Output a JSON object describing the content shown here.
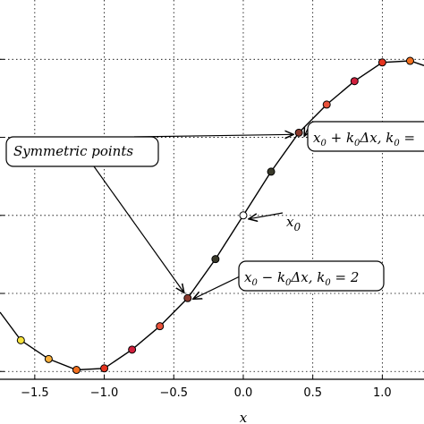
{
  "chart_data": {
    "type": "line",
    "xlabel": "x",
    "xlim": [
      -1.75,
      1.3
    ],
    "ylim": [
      -1.05,
      1.38
    ],
    "x_ticks": [
      -1.5,
      -1.0,
      -0.5,
      0.0,
      0.5,
      1.0
    ],
    "x_tick_labels": [
      "−1.5",
      "−1.0",
      "−0.5",
      "0.0",
      "0.5",
      "1.0"
    ],
    "y_gridlines": [
      -1.0,
      -0.5,
      0.0,
      0.5,
      1.0
    ],
    "grid": true,
    "grid_style": "dotted",
    "curve": {
      "x": [
        -1.75,
        -1.6,
        -1.4,
        -1.2,
        -1.0,
        -0.8,
        -0.6,
        -0.4,
        -0.2,
        0.0,
        0.2,
        0.4,
        0.6,
        0.8,
        1.0,
        1.2,
        1.3
      ],
      "y": [
        -0.62,
        -0.8,
        -0.92,
        -0.99,
        -0.98,
        -0.86,
        -0.71,
        -0.53,
        -0.28,
        0.0,
        0.28,
        0.53,
        0.71,
        0.86,
        0.98,
        0.99,
        0.96
      ]
    },
    "points": [
      {
        "x": -1.6,
        "y": -0.8,
        "color": "#f7e33c"
      },
      {
        "x": -1.4,
        "y": -0.92,
        "color": "#fbb13c"
      },
      {
        "x": -1.2,
        "y": -0.99,
        "color": "#f2701f"
      },
      {
        "x": -1.0,
        "y": -0.98,
        "color": "#e6341f"
      },
      {
        "x": -0.8,
        "y": -0.86,
        "color": "#d11f3c"
      },
      {
        "x": -0.6,
        "y": -0.71,
        "color": "#e8513a"
      },
      {
        "x": -0.4,
        "y": -0.53,
        "color": "#8a3a2e"
      },
      {
        "x": -0.2,
        "y": -0.28,
        "color": "#3a3a2a"
      },
      {
        "x": 0.0,
        "y": 0.0,
        "color": "#ffffff"
      },
      {
        "x": 0.2,
        "y": 0.28,
        "color": "#3a3a2a"
      },
      {
        "x": 0.4,
        "y": 0.53,
        "color": "#8a3a2e"
      },
      {
        "x": 0.6,
        "y": 0.71,
        "color": "#e8513a"
      },
      {
        "x": 0.8,
        "y": 0.86,
        "color": "#d11f3c"
      },
      {
        "x": 1.0,
        "y": 0.98,
        "color": "#e6341f"
      },
      {
        "x": 1.2,
        "y": 0.99,
        "color": "#f2701f"
      }
    ],
    "annotations": {
      "symmetric": {
        "text": "Symmetric points",
        "target_points": [
          {
            "x": 0.4,
            "y": 0.53
          },
          {
            "x": -0.4,
            "y": -0.53
          }
        ]
      },
      "x0": {
        "base": "x",
        "sub": "0",
        "target": {
          "x": 0.0,
          "y": 0.0
        }
      },
      "plus": {
        "text_main": "x",
        "sub0": "0",
        "rest": " + k",
        "sub1": "0",
        "tail": "Δx, k",
        "sub2": "0",
        "eq": " =",
        "target": {
          "x": 0.4,
          "y": 0.53
        }
      },
      "minus": {
        "text_main": "x",
        "sub0": "0",
        "rest": " − k",
        "sub1": "0",
        "tail": "Δx, k",
        "sub2": "0",
        "eq": " = 2",
        "target": {
          "x": -0.4,
          "y": -0.53
        }
      }
    }
  }
}
